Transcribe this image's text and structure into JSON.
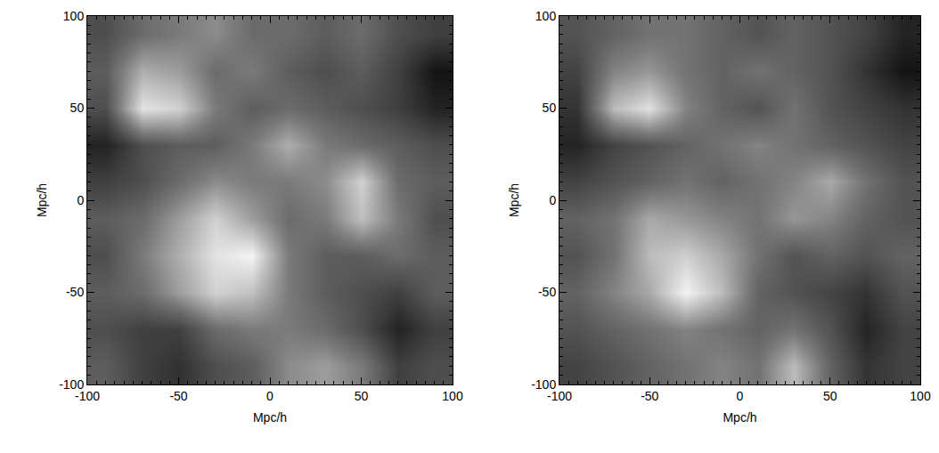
{
  "chart_data": [
    {
      "type": "heatmap",
      "x": [
        -90,
        -70,
        -50,
        -30,
        -10,
        10,
        30,
        50,
        70,
        90
      ],
      "y": [
        -90,
        -70,
        -50,
        -30,
        -10,
        10,
        30,
        50,
        70,
        90
      ],
      "cells": [
        [
          0.4,
          0.3,
          0.25,
          0.35,
          0.4,
          0.55,
          0.6,
          0.5,
          0.3,
          0.35
        ],
        [
          0.35,
          0.3,
          0.3,
          0.45,
          0.5,
          0.5,
          0.45,
          0.35,
          0.2,
          0.3
        ],
        [
          0.4,
          0.45,
          0.6,
          0.75,
          0.7,
          0.5,
          0.4,
          0.35,
          0.3,
          0.4
        ],
        [
          0.35,
          0.5,
          0.65,
          0.8,
          0.85,
          0.5,
          0.4,
          0.4,
          0.45,
          0.4
        ],
        [
          0.4,
          0.45,
          0.6,
          0.75,
          0.6,
          0.45,
          0.5,
          0.7,
          0.5,
          0.35
        ],
        [
          0.3,
          0.35,
          0.45,
          0.55,
          0.5,
          0.5,
          0.55,
          0.75,
          0.45,
          0.4
        ],
        [
          0.2,
          0.35,
          0.4,
          0.4,
          0.5,
          0.65,
          0.5,
          0.45,
          0.4,
          0.35
        ],
        [
          0.35,
          0.8,
          0.75,
          0.5,
          0.4,
          0.45,
          0.4,
          0.35,
          0.3,
          0.2
        ],
        [
          0.4,
          0.65,
          0.6,
          0.45,
          0.5,
          0.4,
          0.35,
          0.4,
          0.3,
          0.15
        ],
        [
          0.35,
          0.45,
          0.5,
          0.55,
          0.45,
          0.45,
          0.4,
          0.45,
          0.35,
          0.3
        ]
      ],
      "xlim": [
        -100,
        100
      ],
      "ylim": [
        -100,
        100
      ],
      "xticks": [
        -100,
        -50,
        0,
        50,
        100
      ],
      "yticks": [
        -100,
        -50,
        0,
        50,
        100
      ],
      "x_label": "Mpc/h",
      "y_label": "Mpc/h"
    },
    {
      "type": "heatmap",
      "x": [
        -90,
        -70,
        -50,
        -30,
        -10,
        10,
        30,
        50,
        70,
        90
      ],
      "y": [
        -90,
        -70,
        -50,
        -30,
        -10,
        10,
        30,
        50,
        70,
        90
      ],
      "cells": [
        [
          0.35,
          0.4,
          0.45,
          0.5,
          0.55,
          0.5,
          0.7,
          0.45,
          0.3,
          0.35
        ],
        [
          0.4,
          0.45,
          0.5,
          0.55,
          0.5,
          0.45,
          0.5,
          0.4,
          0.25,
          0.35
        ],
        [
          0.45,
          0.55,
          0.65,
          0.85,
          0.7,
          0.45,
          0.4,
          0.35,
          0.3,
          0.4
        ],
        [
          0.4,
          0.5,
          0.7,
          0.75,
          0.65,
          0.5,
          0.4,
          0.45,
          0.4,
          0.45
        ],
        [
          0.45,
          0.5,
          0.65,
          0.6,
          0.55,
          0.5,
          0.6,
          0.55,
          0.45,
          0.4
        ],
        [
          0.35,
          0.4,
          0.45,
          0.5,
          0.45,
          0.5,
          0.55,
          0.65,
          0.5,
          0.4
        ],
        [
          0.25,
          0.35,
          0.4,
          0.45,
          0.5,
          0.55,
          0.5,
          0.45,
          0.4,
          0.35
        ],
        [
          0.3,
          0.7,
          0.8,
          0.55,
          0.45,
          0.4,
          0.5,
          0.4,
          0.35,
          0.3
        ],
        [
          0.35,
          0.55,
          0.6,
          0.5,
          0.45,
          0.5,
          0.45,
          0.4,
          0.3,
          0.2
        ],
        [
          0.4,
          0.45,
          0.5,
          0.5,
          0.45,
          0.4,
          0.45,
          0.4,
          0.35,
          0.25
        ]
      ],
      "xlim": [
        -100,
        100
      ],
      "ylim": [
        -100,
        100
      ],
      "xticks": [
        -100,
        -50,
        0,
        50,
        100
      ],
      "yticks": [
        -100,
        -50,
        0,
        50,
        100
      ],
      "x_label": "Mpc/h",
      "y_label": "Mpc/h"
    }
  ]
}
